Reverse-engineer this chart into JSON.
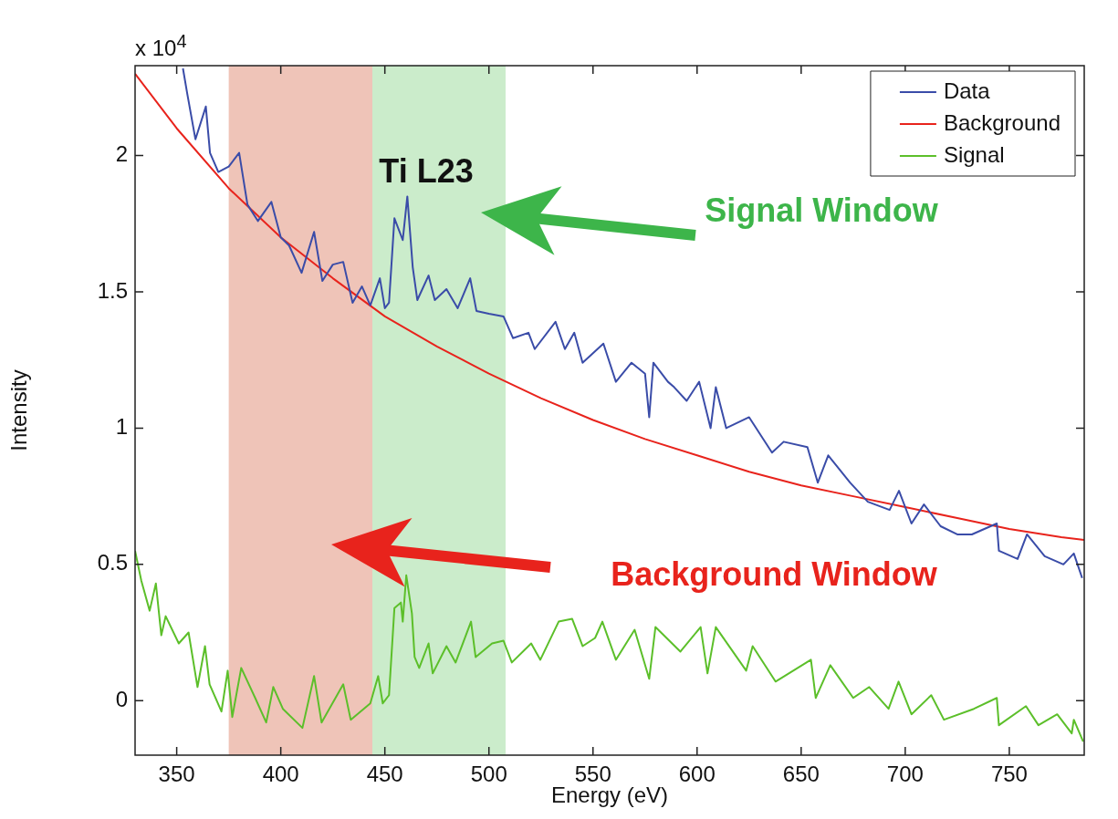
{
  "chart_data": {
    "type": "line",
    "xlabel": "Energy (eV)",
    "ylabel": "Intensity",
    "xlim": [
      330,
      786
    ],
    "ylim": [
      -0.2,
      2.33
    ],
    "xticks": [
      350,
      400,
      450,
      500,
      550,
      600,
      650,
      700,
      750
    ],
    "yticks": [
      0,
      0.5,
      1,
      1.5,
      2
    ],
    "grid": false,
    "legend": "top right",
    "marker": "none",
    "line_style": "solid",
    "series": [
      {
        "name": "Data",
        "color": "#3a4ca8",
        "x": [
          353,
          355,
          359,
          364,
          366,
          370,
          375,
          380,
          384,
          389,
          395.5,
          400,
          404,
          410,
          416,
          420,
          425,
          430,
          434.5,
          439,
          443,
          447.6,
          450,
          452,
          454.6,
          458.6,
          460.8,
          463.4,
          465.6,
          471,
          474,
          479.6,
          485,
          491,
          494,
          500,
          507,
          511.6,
          519,
          522,
          532,
          536.5,
          541,
          545,
          555,
          561,
          568.5,
          575,
          577,
          579,
          586,
          589,
          595,
          601,
          606.5,
          609,
          614,
          625,
          636,
          641.6,
          653,
          658,
          663,
          673.5,
          682,
          692.5,
          697,
          703,
          709,
          717,
          725,
          732,
          744,
          745,
          754,
          758.5,
          767,
          776,
          781,
          785
        ],
        "values": [
          2.32,
          2.23,
          2.06,
          2.18,
          2.01,
          1.94,
          1.96,
          2.01,
          1.82,
          1.76,
          1.83,
          1.7,
          1.67,
          1.57,
          1.72,
          1.54,
          1.6,
          1.61,
          1.46,
          1.52,
          1.45,
          1.55,
          1.44,
          1.46,
          1.77,
          1.69,
          1.85,
          1.59,
          1.47,
          1.56,
          1.47,
          1.51,
          1.44,
          1.55,
          1.43,
          1.42,
          1.41,
          1.33,
          1.35,
          1.29,
          1.39,
          1.29,
          1.35,
          1.24,
          1.31,
          1.17,
          1.24,
          1.2,
          1.04,
          1.24,
          1.17,
          1.15,
          1.1,
          1.17,
          1,
          1.15,
          1,
          1.04,
          0.91,
          0.95,
          0.93,
          0.8,
          0.9,
          0.8,
          0.73,
          0.7,
          0.77,
          0.65,
          0.72,
          0.64,
          0.61,
          0.61,
          0.65,
          0.55,
          0.52,
          0.61,
          0.53,
          0.5,
          0.54,
          0.45
        ]
      },
      {
        "name": "Background",
        "color": "#e8231c",
        "x": [
          330,
          350,
          375,
          400,
          425,
          450,
          475,
          500,
          525,
          550,
          575,
          600,
          625,
          650,
          675,
          700,
          725,
          750,
          775,
          786
        ],
        "values": [
          2.3,
          2.1,
          1.88,
          1.7,
          1.55,
          1.41,
          1.3,
          1.2,
          1.11,
          1.03,
          0.96,
          0.9,
          0.84,
          0.79,
          0.75,
          0.71,
          0.67,
          0.63,
          0.6,
          0.59
        ]
      },
      {
        "name": "Signal",
        "color": "#5cbf2a",
        "x": [
          330,
          333,
          337,
          340,
          342.6,
          344.7,
          351,
          355.7,
          360,
          363.6,
          365.8,
          371.5,
          374.5,
          376.7,
          381,
          387.7,
          393,
          396.4,
          401,
          410.4,
          416,
          419.6,
          430,
          433.6,
          443,
          446.8,
          449,
          452,
          454.6,
          457.7,
          458.6,
          460.3,
          463,
          464.3,
          466.5,
          471,
          473,
          479.6,
          484,
          491.4,
          493.6,
          501.5,
          507,
          511,
          520.3,
          524.7,
          533.5,
          540,
          545,
          551,
          554.5,
          561,
          570,
          577,
          580,
          592,
          601.7,
          605,
          609,
          623.6,
          626.7,
          637.7,
          654.7,
          657,
          664,
          675,
          682.7,
          692,
          696.8,
          703,
          712.5,
          718.6,
          733,
          744,
          745,
          758,
          764,
          773,
          780,
          781,
          785.5
        ],
        "values": [
          0.55,
          0.44,
          0.33,
          0.43,
          0.24,
          0.31,
          0.21,
          0.25,
          0.05,
          0.2,
          0.06,
          -0.04,
          0.11,
          -0.06,
          0.12,
          0.01,
          -0.08,
          0.05,
          -0.03,
          -0.1,
          0.09,
          -0.08,
          0.06,
          -0.07,
          -0.01,
          0.09,
          -0.01,
          0.02,
          0.34,
          0.36,
          0.29,
          0.46,
          0.32,
          0.16,
          0.12,
          0.21,
          0.1,
          0.2,
          0.14,
          0.29,
          0.16,
          0.21,
          0.22,
          0.14,
          0.21,
          0.15,
          0.29,
          0.3,
          0.2,
          0.23,
          0.29,
          0.15,
          0.26,
          0.08,
          0.27,
          0.18,
          0.27,
          0.1,
          0.27,
          0.11,
          0.2,
          0.07,
          0.15,
          0.01,
          0.13,
          0.01,
          0.05,
          -0.03,
          0.07,
          -0.05,
          0.02,
          -0.07,
          -0.03,
          0.01,
          -0.09,
          -0.02,
          -0.09,
          -0.05,
          -0.12,
          -0.07,
          -0.15
        ]
      }
    ],
    "bands": [
      {
        "axis": "x",
        "from": 375,
        "to": 444,
        "color": "#efc4b8"
      },
      {
        "axis": "x",
        "from": 444,
        "to": 508,
        "color": "#cbeccb"
      }
    ],
    "annotations": [
      "x 10$^{4}$",
      "Ti L23",
      "Signal Window",
      "Background Window"
    ]
  }
}
